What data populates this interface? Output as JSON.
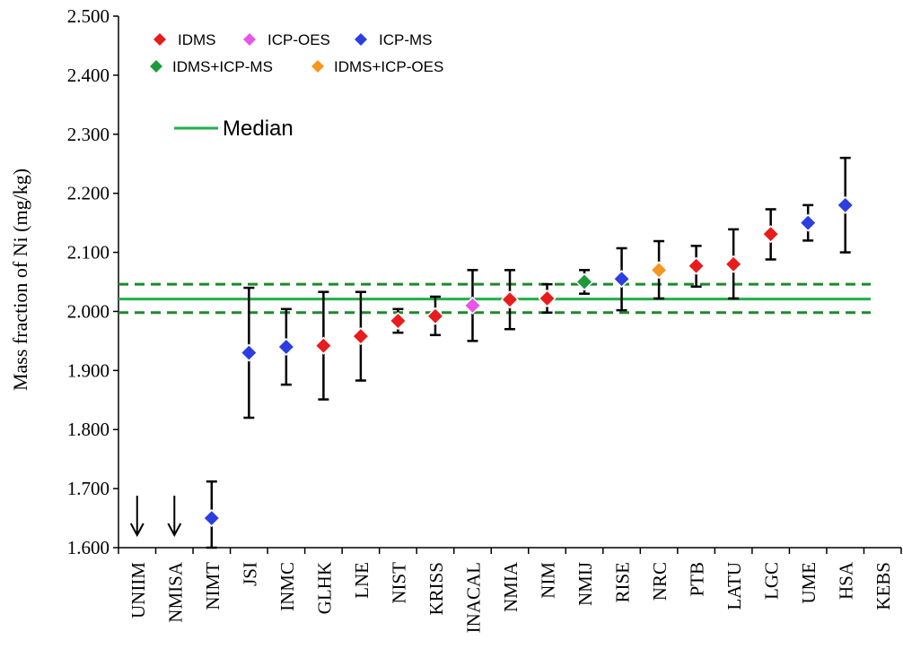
{
  "chart_data": {
    "type": "scatter",
    "ylabel": "Mass fraction of Ni (mg/kg)",
    "ylim": [
      1.6,
      2.5
    ],
    "yticks": [
      "1.600",
      "1.700",
      "1.800",
      "1.900",
      "2.000",
      "2.100",
      "2.200",
      "2.300",
      "2.400",
      "2.500"
    ],
    "grid": false,
    "legend": {
      "position": "top-left",
      "entries": [
        {
          "label": "IDMS",
          "color": "#e81c1c"
        },
        {
          "label": "ICP-OES",
          "color": "#e855e8"
        },
        {
          "label": "ICP-MS",
          "color": "#2b3ee0"
        },
        {
          "label": "IDMS+ICP-MS",
          "color": "#1e9a3c"
        },
        {
          "label": "IDMS+ICP-OES",
          "color": "#f5961e"
        }
      ],
      "median_label": "Median"
    },
    "median": 2.021,
    "median_band": [
      1.998,
      2.046
    ],
    "colors": {
      "median": "#1fb04b",
      "band": "#1e8a2a",
      "errorbar": "#000000",
      "axis": "#000000"
    },
    "categories": [
      "UNIIM",
      "NMISA",
      "NIMT",
      "JSI",
      "INMC",
      "GLHK",
      "LNE",
      "NIST",
      "KRISS",
      "INACAL",
      "NMIA",
      "NIM",
      "NMIJ",
      "RISE",
      "NRC",
      "PTB",
      "LATU",
      "LGC",
      "UME",
      "HSA",
      "KEBS"
    ],
    "points": [
      {
        "lab": "UNIIM",
        "offscale": "below"
      },
      {
        "lab": "NMISA",
        "offscale": "below"
      },
      {
        "lab": "NIMT",
        "value": 1.65,
        "low": 1.6,
        "high": 1.712,
        "method": "ICP-MS"
      },
      {
        "lab": "JSI",
        "value": 1.93,
        "low": 1.82,
        "high": 2.04,
        "method": "ICP-MS"
      },
      {
        "lab": "INMC",
        "value": 1.94,
        "low": 1.876,
        "high": 2.004,
        "method": "ICP-MS"
      },
      {
        "lab": "GLHK",
        "value": 1.942,
        "low": 1.851,
        "high": 2.033,
        "method": "IDMS"
      },
      {
        "lab": "LNE",
        "value": 1.958,
        "low": 1.883,
        "high": 2.033,
        "method": "IDMS"
      },
      {
        "lab": "NIST",
        "value": 1.984,
        "low": 1.964,
        "high": 2.004,
        "method": "IDMS"
      },
      {
        "lab": "KRISS",
        "value": 1.992,
        "low": 1.96,
        "high": 2.025,
        "method": "IDMS"
      },
      {
        "lab": "INACAL",
        "value": 2.01,
        "low": 1.95,
        "high": 2.07,
        "method": "ICP-OES"
      },
      {
        "lab": "NMIA",
        "value": 2.02,
        "low": 1.97,
        "high": 2.07,
        "method": "IDMS"
      },
      {
        "lab": "NIM",
        "value": 2.022,
        "low": 1.998,
        "high": 2.046,
        "method": "IDMS"
      },
      {
        "lab": "NMIJ",
        "value": 2.05,
        "low": 2.03,
        "high": 2.07,
        "method": "IDMS+ICP-MS"
      },
      {
        "lab": "RISE",
        "value": 2.055,
        "low": 2.002,
        "high": 2.107,
        "method": "ICP-MS"
      },
      {
        "lab": "NRC",
        "value": 2.07,
        "low": 2.022,
        "high": 2.119,
        "method": "IDMS+ICP-OES"
      },
      {
        "lab": "PTB",
        "value": 2.077,
        "low": 2.042,
        "high": 2.111,
        "method": "IDMS"
      },
      {
        "lab": "LATU",
        "value": 2.08,
        "low": 2.022,
        "high": 2.139,
        "method": "IDMS"
      },
      {
        "lab": "LGC",
        "value": 2.131,
        "low": 2.088,
        "high": 2.173,
        "method": "IDMS"
      },
      {
        "lab": "UME",
        "value": 2.15,
        "low": 2.12,
        "high": 2.18,
        "method": "ICP-MS"
      },
      {
        "lab": "HSA",
        "value": 2.18,
        "low": 2.1,
        "high": 2.26,
        "method": "ICP-MS"
      },
      {
        "lab": "KEBS"
      }
    ]
  }
}
